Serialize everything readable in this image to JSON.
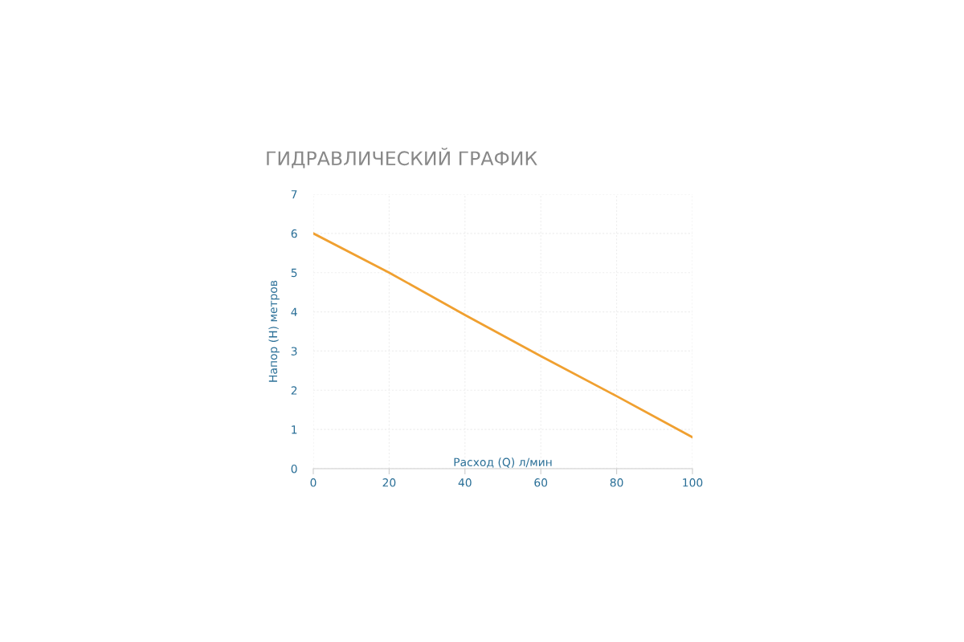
{
  "chart_data": {
    "type": "line",
    "title": "ГИДРАВЛИЧЕСКИЙ ГРАФИК",
    "xlabel": "Расход (Q) л/мин",
    "ylabel": "Напор (H) метров",
    "x": [
      0,
      20,
      40,
      60,
      80,
      100
    ],
    "series": [
      {
        "color": "#f0a030",
        "values": [
          6.0,
          5.0,
          3.92,
          2.87,
          1.85,
          0.8
        ]
      }
    ],
    "xlim": [
      0,
      100
    ],
    "ylim": [
      0,
      7
    ],
    "xticks": [
      0,
      20,
      40,
      60,
      80,
      100
    ],
    "yticks": [
      0,
      1,
      2,
      3,
      4,
      5,
      6,
      7
    ],
    "grid": true,
    "legend": false,
    "marker": "none",
    "line_style": "solid"
  }
}
